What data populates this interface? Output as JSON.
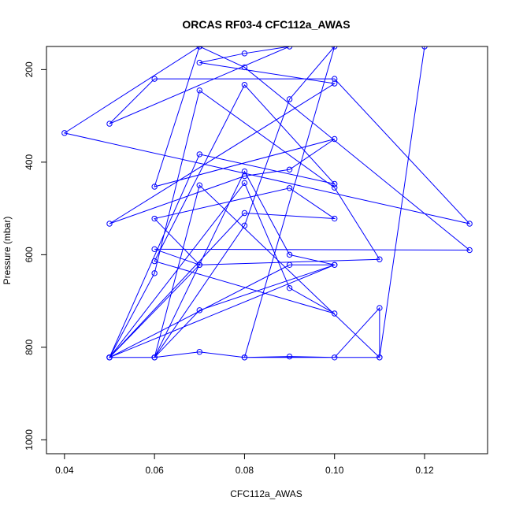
{
  "chart_data": {
    "type": "line",
    "title": "ORCAS RF03-4 CFC112a_AWAS",
    "xlabel": "CFC112a_AWAS",
    "ylabel": "Pressure (mbar)",
    "xlim": [
      0.036,
      0.134
    ],
    "ylim": [
      1030,
      150
    ],
    "y_reversed": true,
    "x_ticks": [
      0.04,
      0.06,
      0.08,
      0.1,
      0.12
    ],
    "x_tick_labels": [
      "0.04",
      "0.06",
      "0.08",
      "0.10",
      "0.12"
    ],
    "y_ticks": [
      200,
      400,
      600,
      800,
      1000
    ],
    "y_tick_labels": [
      "200",
      "400",
      "600",
      "800",
      "1000"
    ],
    "grid": false,
    "series_color": "#0000ff",
    "series": [
      {
        "x": [
          0.07,
          0.04,
          0.13,
          0.1,
          0.06,
          0.05,
          0.09,
          0.08,
          0.07,
          0.1,
          0.05,
          0.08,
          0.09,
          0.1,
          0.06,
          0.07,
          0.08,
          0.13,
          0.06,
          0.07,
          0.11,
          0.1,
          0.07,
          0.06,
          0.05,
          0.1,
          0.09,
          0.08,
          0.06,
          0.07,
          0.11,
          0.11,
          0.1,
          0.09,
          0.08,
          0.07,
          0.06,
          0.05,
          0.08,
          0.1,
          0.09,
          0.06,
          0.07,
          0.05,
          0.08,
          0.09,
          0.1,
          0.06,
          0.08,
          0.1,
          0.07,
          0.05,
          0.09,
          0.1,
          0.07,
          0.06,
          0.08,
          0.09,
          0.1,
          0.08,
          0.11,
          0.12
        ],
        "y": [
          150,
          337,
          533,
          220,
          220,
          317,
          150,
          165,
          185,
          230,
          533,
          430,
          416,
          350,
          453,
          150,
          195,
          590,
          588,
          622,
          610,
          455,
          245,
          640,
          822,
          622,
          600,
          420,
          822,
          450,
          822,
          715,
          822,
          820,
          822,
          810,
          822,
          822,
          510,
          522,
          456,
          522,
          622,
          822,
          445,
          672,
          727,
          614,
          233,
          447,
          383,
          822,
          622,
          622,
          720,
          822,
          537,
          264,
          150,
          822,
          822,
          150
        ]
      }
    ]
  }
}
